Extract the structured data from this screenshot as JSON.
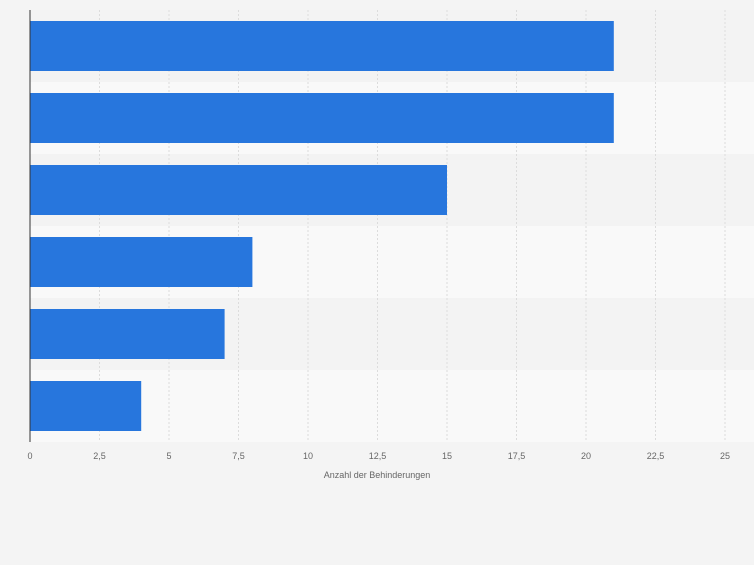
{
  "chart_data": {
    "type": "bar",
    "orientation": "horizontal",
    "categories": [
      "",
      "",
      "",
      "",
      "",
      ""
    ],
    "values": [
      21,
      21,
      15,
      8,
      7,
      4
    ],
    "title": "",
    "xlabel": "Anzahl der Behinderungen",
    "ylabel": "",
    "xlim": [
      0,
      25
    ],
    "x_ticks": [
      "0",
      "2,5",
      "5",
      "7,5",
      "10",
      "12,5",
      "15",
      "17,5",
      "20",
      "22,5",
      "25"
    ],
    "grid": true,
    "legend": "none",
    "colors": {
      "bar": "#2776dd",
      "background": "#f4f4f4",
      "band_light": "#f9f9f9",
      "band_dark": "#f3f3f3",
      "grid": "#dcdcdc",
      "axis": "#333333",
      "tick_text": "#666666"
    }
  }
}
